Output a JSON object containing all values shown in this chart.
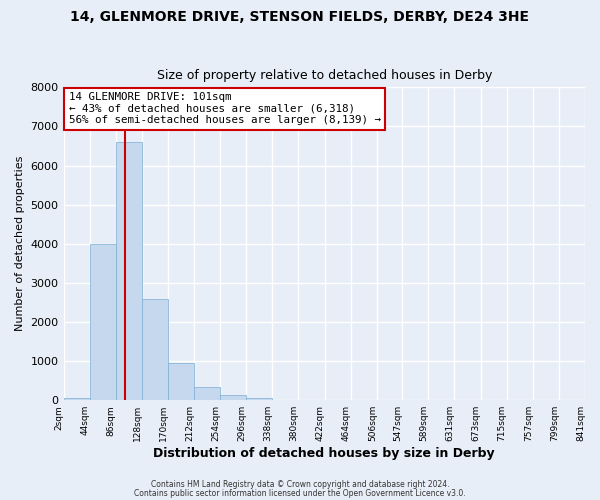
{
  "title": "14, GLENMORE DRIVE, STENSON FIELDS, DERBY, DE24 3HE",
  "subtitle": "Size of property relative to detached houses in Derby",
  "xlabel": "Distribution of detached houses by size in Derby",
  "ylabel": "Number of detached properties",
  "bin_edges": [
    2,
    44,
    86,
    128,
    170,
    212,
    254,
    296,
    338,
    380,
    422,
    464,
    506,
    547,
    589,
    631,
    673,
    715,
    757,
    799,
    841
  ],
  "bar_heights": [
    60,
    4000,
    6600,
    2600,
    960,
    330,
    130,
    60,
    0,
    0,
    0,
    0,
    0,
    0,
    0,
    0,
    0,
    0,
    0,
    0
  ],
  "bar_color": "#c5d8ed",
  "bar_edgecolor": "#7bafd4",
  "property_line_x": 101,
  "property_line_color": "#cc0000",
  "annotation_text": "14 GLENMORE DRIVE: 101sqm\n← 43% of detached houses are smaller (6,318)\n56% of semi-detached houses are larger (8,139) →",
  "annotation_box_edgecolor": "#cc0000",
  "annotation_box_facecolor": "#ffffff",
  "ylim": [
    0,
    8000
  ],
  "yticks": [
    0,
    1000,
    2000,
    3000,
    4000,
    5000,
    6000,
    7000,
    8000
  ],
  "tick_labels": [
    "2sqm",
    "44sqm",
    "86sqm",
    "128sqm",
    "170sqm",
    "212sqm",
    "254sqm",
    "296sqm",
    "338sqm",
    "380sqm",
    "422sqm",
    "464sqm",
    "506sqm",
    "547sqm",
    "589sqm",
    "631sqm",
    "673sqm",
    "715sqm",
    "757sqm",
    "799sqm",
    "841sqm"
  ],
  "footer_line1": "Contains HM Land Registry data © Crown copyright and database right 2024.",
  "footer_line2": "Contains public sector information licensed under the Open Government Licence v3.0.",
  "bg_color": "#e8eef7",
  "plot_bg_color": "#e8eef7",
  "grid_color": "#ffffff",
  "title_fontsize": 10,
  "subtitle_fontsize": 9
}
